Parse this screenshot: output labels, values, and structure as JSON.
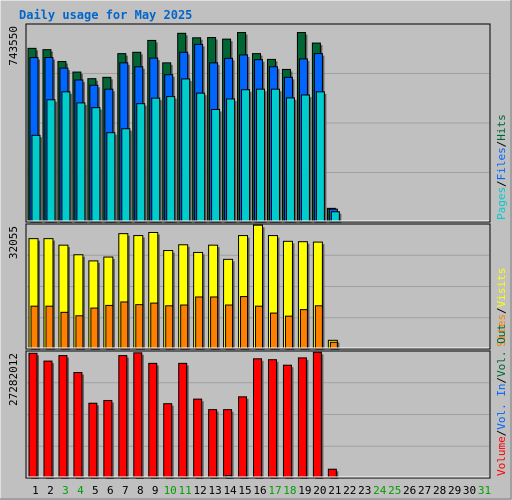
{
  "title": "Daily usage for May 2025",
  "colors": {
    "background": "#c0c0c0",
    "title": "#0066cc",
    "hits": "#006633",
    "files": "#0066ff",
    "pages": "#00cccc",
    "visits": "#ffff00",
    "sites": "#ff8000",
    "kbytes": "#ff0000",
    "grid": "#a0a0a0",
    "weekend_label": "#00a000"
  },
  "chart_data": [
    {
      "type": "bar",
      "panel": "hits-files-pages",
      "x": [
        "1",
        "2",
        "3",
        "4",
        "5",
        "6",
        "7",
        "8",
        "9",
        "10",
        "11",
        "12",
        "13",
        "14",
        "15",
        "16",
        "17",
        "18",
        "19",
        "20",
        "21",
        "22",
        "23",
        "24",
        "25",
        "26",
        "27",
        "28",
        "29",
        "30",
        "31"
      ],
      "weekend_days": [
        "3",
        "4",
        "10",
        "11",
        "17",
        "18",
        "24",
        "25",
        "31"
      ],
      "ymax_label": "743550",
      "ylim": [
        0,
        743550
      ],
      "series": [
        {
          "name": "Hits",
          "values": [
            655000,
            650000,
            605000,
            565000,
            540000,
            545000,
            635000,
            640000,
            685000,
            600000,
            712000,
            695000,
            696000,
            690000,
            715000,
            635000,
            613000,
            575000,
            715000,
            675000,
            48000,
            0,
            0,
            0,
            0,
            0,
            0,
            0,
            0,
            0,
            0
          ]
        },
        {
          "name": "Files",
          "values": [
            620000,
            620000,
            580000,
            535000,
            515000,
            500000,
            600000,
            585000,
            618000,
            555000,
            640000,
            670000,
            600000,
            617000,
            630000,
            612000,
            585000,
            545000,
            615000,
            635000,
            45000,
            0,
            0,
            0,
            0,
            0,
            0,
            0,
            0,
            0,
            0
          ]
        },
        {
          "name": "Pages",
          "values": [
            325000,
            460000,
            490000,
            448000,
            430000,
            335000,
            350000,
            445000,
            466000,
            472000,
            539000,
            485000,
            423000,
            463000,
            498000,
            500000,
            500000,
            467000,
            478000,
            490000,
            35000,
            0,
            0,
            0,
            0,
            0,
            0,
            0,
            0,
            0,
            0
          ]
        }
      ],
      "legend": [
        "Pages",
        "Files",
        "Hits"
      ]
    },
    {
      "type": "bar",
      "panel": "visits-sites",
      "x": [
        "1",
        "2",
        "3",
        "4",
        "5",
        "6",
        "7",
        "8",
        "9",
        "10",
        "11",
        "12",
        "13",
        "14",
        "15",
        "16",
        "17",
        "18",
        "19",
        "20",
        "21",
        "22",
        "23",
        "24",
        "25",
        "26",
        "27",
        "28",
        "29",
        "30",
        "31"
      ],
      "ymax_label": "32055",
      "ylim": [
        0,
        32055
      ],
      "series": [
        {
          "name": "Visits",
          "values": [
            28500,
            28500,
            26800,
            24300,
            22700,
            23700,
            29800,
            29300,
            30100,
            25400,
            26900,
            24900,
            26800,
            23100,
            29300,
            32000,
            29300,
            27800,
            27700,
            27600,
            2000,
            0,
            0,
            0,
            0,
            0,
            0,
            0,
            0,
            0,
            0
          ]
        },
        {
          "name": "Sites",
          "values": [
            10900,
            10900,
            9300,
            8400,
            10400,
            11100,
            12000,
            11300,
            11700,
            11000,
            11200,
            13300,
            13300,
            11200,
            13400,
            10900,
            9100,
            8300,
            10000,
            11000,
            1500,
            0,
            0,
            0,
            0,
            0,
            0,
            0,
            0,
            0,
            0
          ]
        }
      ],
      "legend": [
        "Sites",
        "Visits"
      ]
    },
    {
      "type": "bar",
      "panel": "volume",
      "x": [
        "1",
        "2",
        "3",
        "4",
        "5",
        "6",
        "7",
        "8",
        "9",
        "10",
        "11",
        "12",
        "13",
        "14",
        "15",
        "16",
        "17",
        "18",
        "19",
        "20",
        "21",
        "22",
        "23",
        "24",
        "25",
        "26",
        "27",
        "28",
        "29",
        "30",
        "31"
      ],
      "ymax_label": "27282012",
      "ylim": [
        0,
        27282012
      ],
      "series": [
        {
          "name": "Volume",
          "values": [
            27000000,
            25300000,
            26500000,
            22800000,
            16100000,
            16700000,
            26500000,
            27100000,
            24800000,
            16000000,
            24800000,
            17000000,
            14700000,
            14700000,
            17500000,
            25800000,
            25600000,
            24400000,
            26000000,
            27200000,
            1700000,
            0,
            0,
            0,
            0,
            0,
            0,
            0,
            0,
            0,
            0
          ]
        },
        {
          "name": "Vol. In",
          "values": [
            0,
            0,
            0,
            0,
            0,
            0,
            0,
            0,
            0,
            0,
            0,
            0,
            0,
            300000,
            0,
            0,
            0,
            0,
            0,
            0,
            0,
            0,
            0,
            0,
            0,
            0,
            0,
            0,
            0,
            0,
            0
          ]
        },
        {
          "name": "Vol. Out",
          "values": [
            0,
            0,
            0,
            0,
            0,
            0,
            0,
            0,
            0,
            0,
            0,
            0,
            0,
            0,
            0,
            0,
            0,
            0,
            0,
            0,
            0,
            0,
            0,
            0,
            0,
            0,
            0,
            0,
            0,
            0,
            0
          ]
        }
      ],
      "legend": [
        "Volume",
        "Vol. In",
        "Vol. Out"
      ]
    }
  ]
}
